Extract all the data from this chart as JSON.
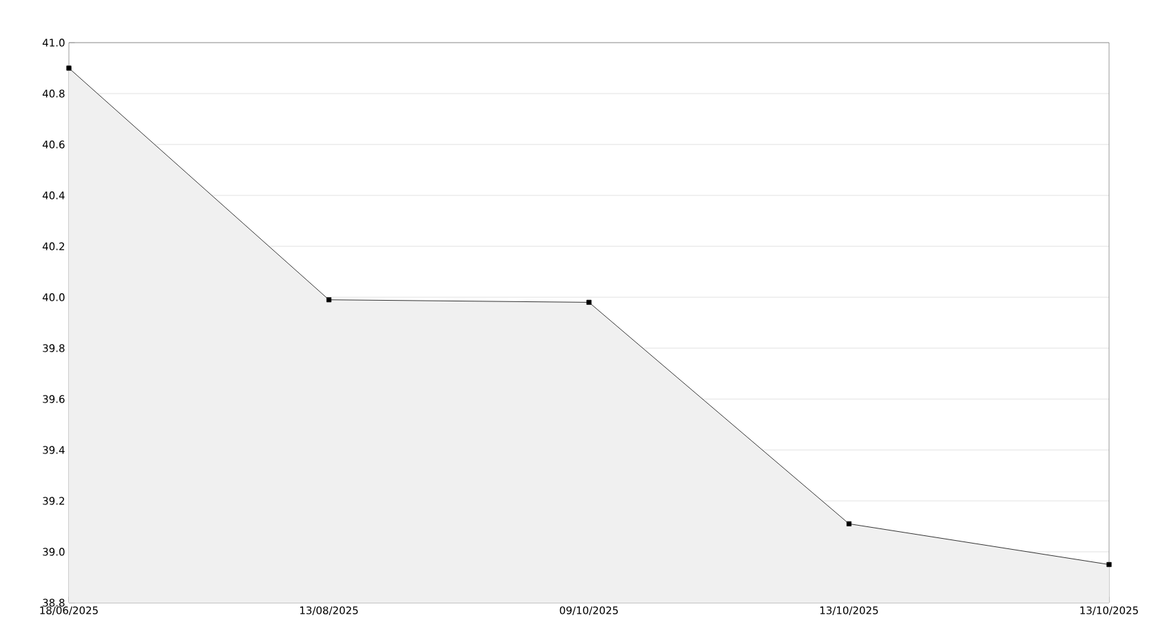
{
  "chart_data": {
    "type": "area",
    "categories": [
      "18/06/2025",
      "13/08/2025",
      "09/10/2025",
      "13/10/2025",
      "13/10/2025"
    ],
    "series": [
      {
        "color": "#000000",
        "values": [
          40.9,
          39.99,
          39.98,
          39.11,
          38.95
        ]
      }
    ],
    "ylim": [
      38.8,
      41.0
    ],
    "yticks": [
      38.8,
      {
        "value": 39,
        "label": "39.0"
      },
      39.2,
      39.4,
      39.6,
      39.8,
      {
        "value": 40,
        "label": "40.0"
      },
      40.2,
      40.4,
      40.6,
      40.8,
      {
        "value": 41,
        "label": "41.0"
      }
    ],
    "grid": "y",
    "marker": "square",
    "line_style": "solid"
  }
}
